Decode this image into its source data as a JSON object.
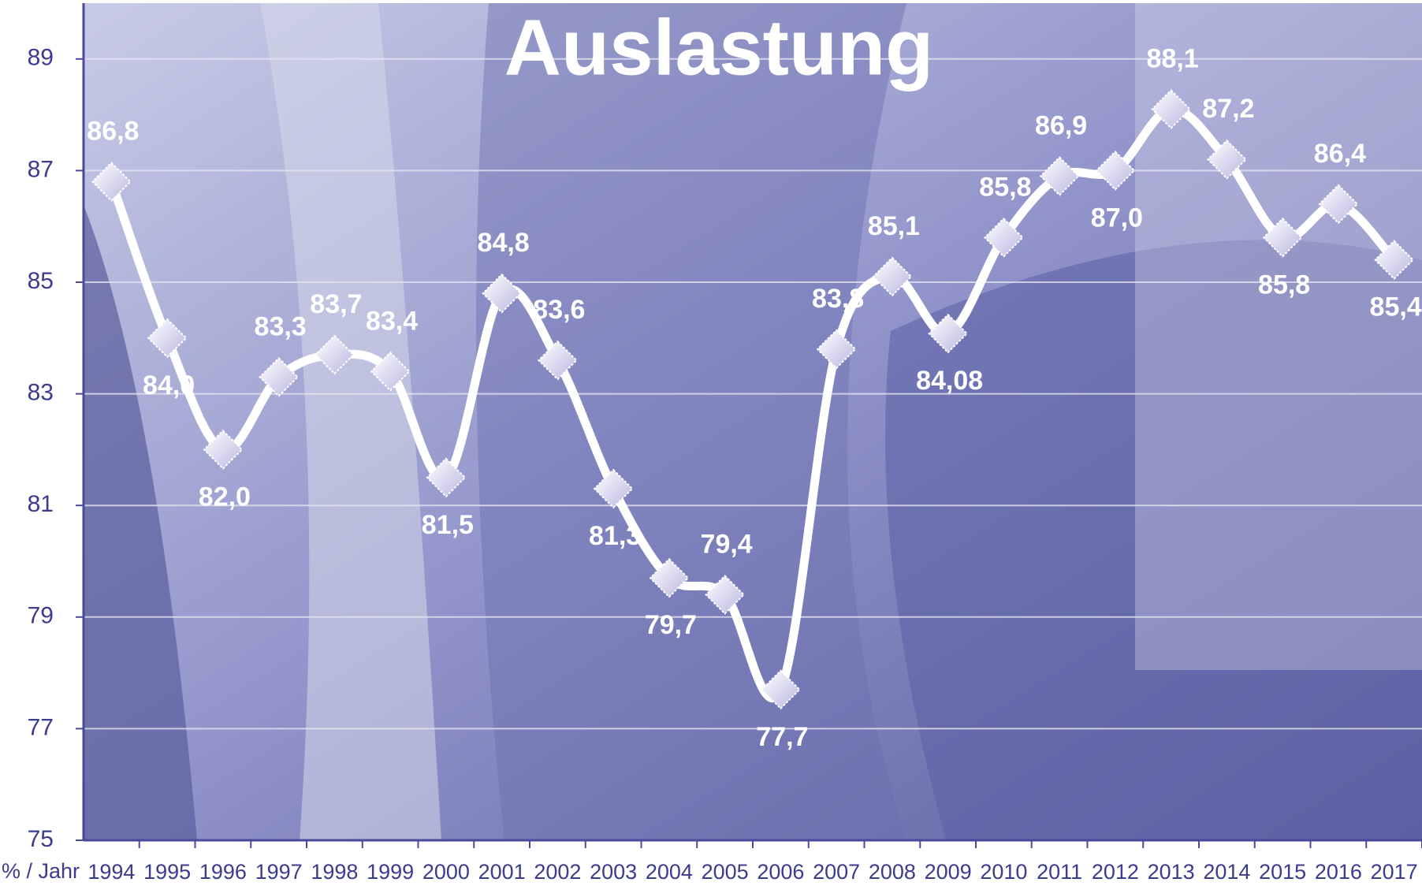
{
  "chart_data": {
    "type": "line",
    "title": "Auslastung",
    "x_label": "% / Jahr",
    "categories": [
      "1994",
      "1995",
      "1996",
      "1997",
      "1998",
      "1999",
      "2000",
      "2001",
      "2002",
      "2003",
      "2004",
      "2005",
      "2006",
      "2007",
      "2008",
      "2009",
      "2010",
      "2011",
      "2012",
      "2013",
      "2014",
      "2015",
      "2016",
      "2017"
    ],
    "series": [
      {
        "name": "Auslastung",
        "color": "#ffffff",
        "values": [
          86.8,
          84.0,
          82.0,
          83.3,
          83.7,
          83.4,
          81.5,
          84.8,
          83.6,
          81.3,
          79.7,
          79.4,
          77.7,
          83.8,
          85.1,
          84.08,
          85.8,
          86.9,
          87.0,
          88.1,
          87.2,
          85.8,
          86.4,
          85.4
        ],
        "value_labels": [
          "86,8",
          "84,0",
          "82,0",
          "83,3",
          "83,7",
          "83,4",
          "81,5",
          "84,8",
          "83,6",
          "81,3",
          "79,7",
          "79,4",
          "77,7",
          "83,8",
          "85,1",
          "84,08",
          "85,8",
          "86,9",
          "87,0",
          "88,1",
          "87,2",
          "85,8",
          "86,4",
          "85,4"
        ]
      }
    ],
    "ylim": [
      75,
      90
    ],
    "yticks": [
      75,
      77,
      79,
      81,
      83,
      85,
      87,
      89
    ],
    "grid": true
  }
}
